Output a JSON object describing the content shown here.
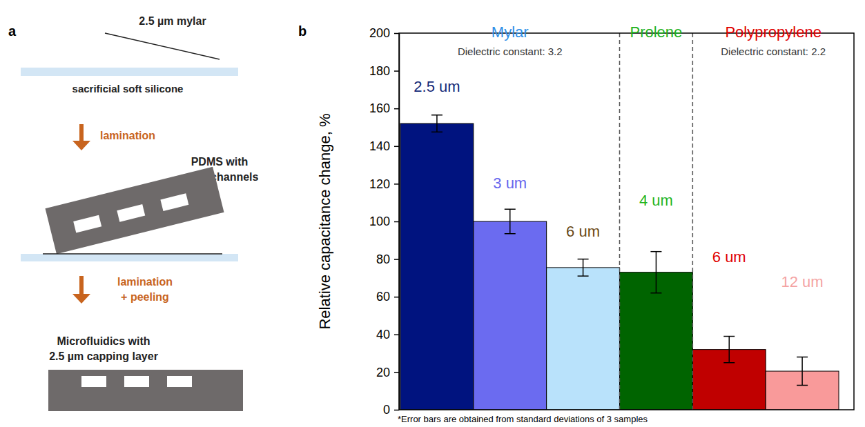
{
  "diagram": {
    "label": "a",
    "film_label": "2.5 µm mylar",
    "substrate_label": "sacrificial soft silicone",
    "step1": "lamination",
    "pdms_label": [
      "PDMS with",
      "microchannels"
    ],
    "step2": [
      "lamination",
      "+ peeling"
    ],
    "result_label": [
      "Microfluidics with",
      "2.5 µm capping layer"
    ]
  },
  "chart_data": {
    "type": "bar",
    "panel_label": "b",
    "ylabel": "Relative capacitance change, %",
    "categories": [
      "2.5 um",
      "3 um",
      "6 um",
      "4 um",
      "6 um",
      "12 um"
    ],
    "values": [
      152,
      100,
      75.5,
      73,
      32,
      20.5
    ],
    "errors": [
      4.5,
      6.5,
      4.5,
      11,
      7,
      7.5
    ],
    "colors": [
      "#00137f",
      "#6b6bf0",
      "#b9e2fb",
      "#006400",
      "#c00000",
      "#f99a9a"
    ],
    "group": [
      "Mylar",
      "Mylar",
      "Mylar",
      "Prolene",
      "Polypropylene",
      "Polypropylene"
    ],
    "groups": [
      {
        "name": "Mylar",
        "color": "#2f8fe8",
        "note": "Dielectric constant: 3.2"
      },
      {
        "name": "Prolene",
        "color": "#1db31d"
      },
      {
        "name": "Polypropylene",
        "color": "#e00000",
        "note": "Dielectric constant: 2.2"
      }
    ],
    "ylim": [
      0,
      200
    ],
    "yticks": [
      0,
      20,
      40,
      60,
      80,
      100,
      120,
      140,
      160,
      180,
      200
    ],
    "grid": false,
    "tick_labels": "y",
    "footnote": "*Error bars are obtained from standard deviations of 3 samples"
  }
}
